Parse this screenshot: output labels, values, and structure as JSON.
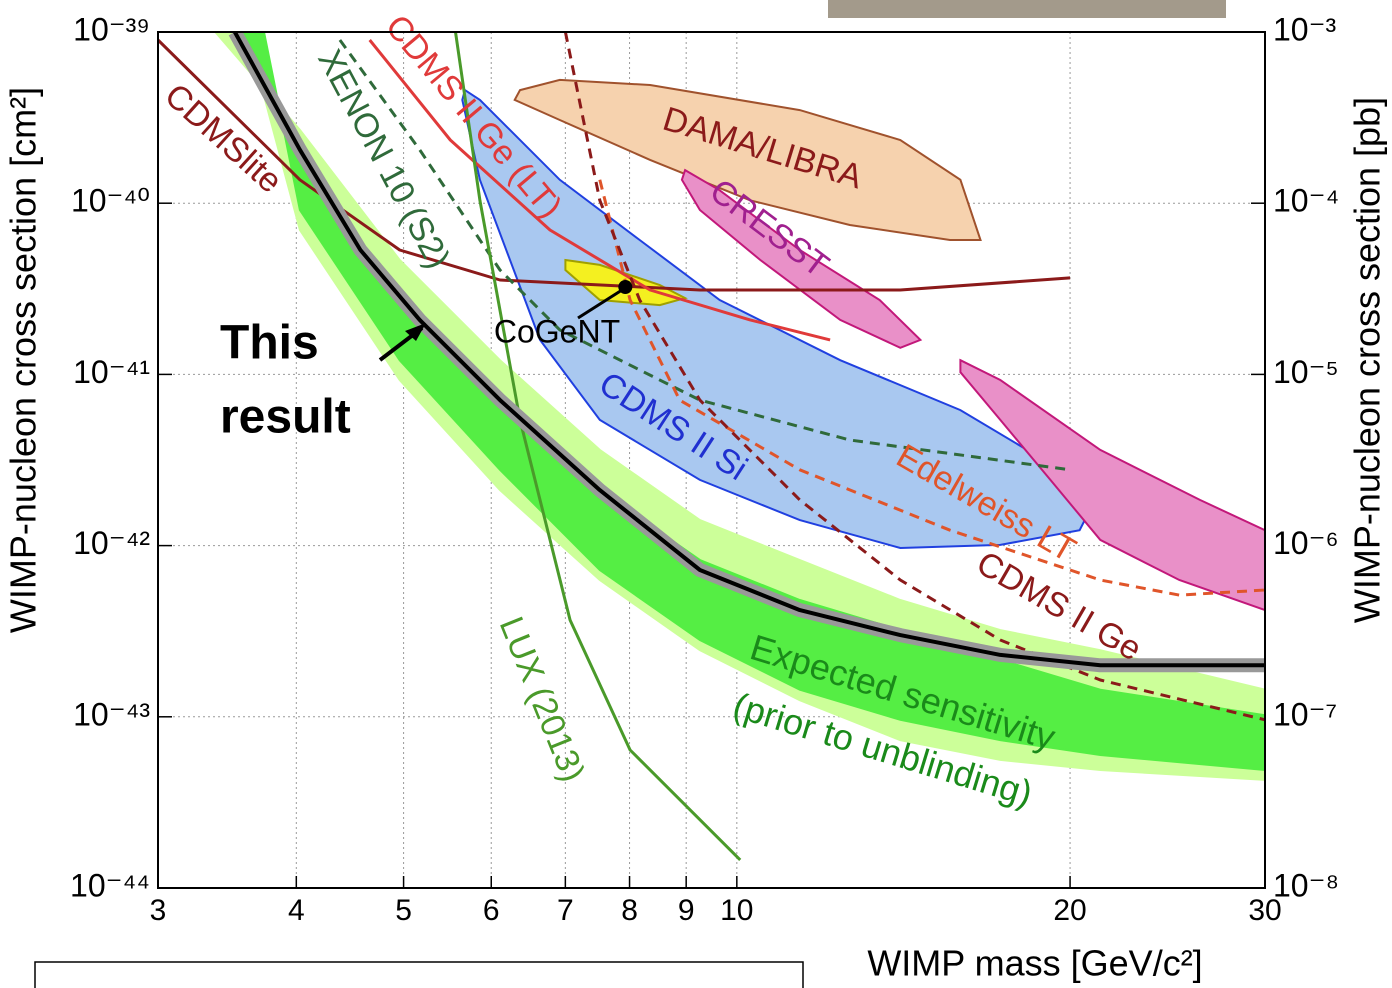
{
  "chart_data": {
    "type": "line",
    "xscale": "log",
    "yscale": "log",
    "xlabel": "WIMP mass [GeV/c²]",
    "ylabel": "WIMP-nucleon cross section [cm²]",
    "y2label": "WIMP-nucleon cross section [pb]",
    "xlim": [
      3,
      30
    ],
    "ylim": [
      1e-44,
      1e-39
    ],
    "y2lim": [
      1e-08,
      0.001
    ],
    "xticks": [
      3,
      4,
      5,
      6,
      7,
      8,
      9,
      10,
      20,
      30
    ],
    "yticks": [
      {
        "value": 1e-44,
        "label": "10⁻⁴⁴"
      },
      {
        "value": 1e-43,
        "label": "10⁻⁴³"
      },
      {
        "value": 1e-42,
        "label": "10⁻⁴²"
      },
      {
        "value": 1e-41,
        "label": "10⁻⁴¹"
      },
      {
        "value": 1e-40,
        "label": "10⁻⁴⁰"
      },
      {
        "value": 1e-39,
        "label": "10⁻³⁹"
      }
    ],
    "y2ticks": [
      {
        "value": 1e-08,
        "label": "10⁻⁸"
      },
      {
        "value": 1e-07,
        "label": "10⁻⁷"
      },
      {
        "value": 1e-06,
        "label": "10⁻⁶"
      },
      {
        "value": 1e-05,
        "label": "10⁻⁵"
      },
      {
        "value": 0.0001,
        "label": "10⁻⁴"
      },
      {
        "value": 0.001,
        "label": "10⁻³"
      }
    ],
    "grid": true,
    "regions": [
      {
        "color": "#ccff99",
        "stroke": "#ccff99",
        "x": [
          3.38,
          4.03,
          4.96,
          6.11,
          7.52,
          9.26,
          11.4,
          14.05,
          17.3,
          21.3,
          30,
          30,
          21.3,
          17.3,
          14.05,
          11.4,
          9.26,
          7.52,
          6.11,
          4.96,
          4.03,
          3.61
        ],
        "values": [
          1e-39,
          2.68e-40,
          4.66e-41,
          1.21e-41,
          3.62e-42,
          1.41e-42,
          8.24e-43,
          4.81e-43,
          3.21e-43,
          2.45e-43,
          1.44e-43,
          4.28e-44,
          4.89e-44,
          5.6e-44,
          7.31e-44,
          1.25e-43,
          2.45e-43,
          6.3e-43,
          2.11e-42,
          9.28e-42,
          6.97e-41,
          1e-39
        ]
      },
      {
        "color": "#55ee44",
        "stroke": "#55ee44",
        "x": [
          3.52,
          4.03,
          4.96,
          6.11,
          7.52,
          9.26,
          11.4,
          14.05,
          17.3,
          21.3,
          30,
          30,
          21.3,
          17.3,
          14.05,
          11.4,
          9.26,
          7.52,
          6.11,
          4.96,
          4.03,
          3.74
        ],
        "values": [
          1e-39,
          1.91e-40,
          2.72e-41,
          7.08e-42,
          2.11e-42,
          8.24e-43,
          4.81e-43,
          3.21e-43,
          2.15e-43,
          1.44e-43,
          1.02e-43,
          4.89e-44,
          5.98e-44,
          7.31e-44,
          9.6e-44,
          1.44e-43,
          2.81e-43,
          7.2e-43,
          2.77e-42,
          1.21e-41,
          9.12e-41,
          1e-39
        ]
      },
      {
        "name": "DAMA/LIBRA",
        "color": "#f6d2ae",
        "stroke": "#a0522d",
        "x": [
          6.37,
          6.92,
          8.35,
          11.4,
          14.05,
          15.92,
          16.6,
          15.58,
          12.65,
          10.28,
          8.35,
          6.92,
          6.3
        ],
        "values": [
          4.58e-40,
          5.25e-40,
          4.9e-40,
          3.5e-40,
          2.34e-40,
          1.37e-40,
          6.1e-41,
          6.1e-41,
          7.46e-41,
          1.04e-40,
          1.79e-40,
          3.06e-40,
          4.01e-40
        ]
      },
      {
        "name": "CDMS II Si",
        "color": "#a9c8f0",
        "stroke": "#2040e0",
        "x": [
          5.68,
          5.86,
          6.92,
          8.17,
          9.65,
          12.4,
          15.92,
          19.6,
          20.84,
          20.4,
          17.3,
          14.05,
          11.4,
          9.26,
          7.52,
          6.64,
          5.86,
          5.65
        ],
        "values": [
          4.58e-40,
          4.01e-40,
          1.37e-40,
          6.1e-41,
          2.72e-41,
          1.21e-41,
          6.19e-42,
          2.77e-42,
          1.61e-42,
          1.23e-42,
          1.01e-42,
          9.68e-43,
          1.41e-42,
          2.42e-42,
          5.42e-42,
          1.59e-41,
          1.37e-40,
          4.01e-40
        ]
      },
      {
        "name": "CRESST",
        "color": "#e990c8",
        "stroke": "#c2187a",
        "x": [
          8.98,
          9.65,
          11.4,
          13.46,
          14.65,
          14.05,
          12.4,
          10.5,
          9.26,
          8.92
        ],
        "values": [
          1.56e-40,
          1.19e-40,
          5.33e-41,
          2.72e-41,
          1.59e-41,
          1.43e-41,
          2.08e-41,
          4.66e-41,
          9.12e-41,
          1.37e-40
        ]
      },
      {
        "color": "#e990c8",
        "stroke": "#c2187a",
        "x": [
          15.92,
          17.3,
          21.3,
          26.2,
          30,
          30,
          25.1,
          21.3,
          19.2,
          17.3,
          15.92
        ],
        "values": [
          1.21e-41,
          9.28e-42,
          3.62e-42,
          1.85e-42,
          1.23e-42,
          4.2e-43,
          6.3e-43,
          1.08e-42,
          2.42e-42,
          5.42e-42,
          1.03e-41
        ]
      },
      {
        "color": "#f4f020",
        "stroke": "#a0a000",
        "x": [
          7.0,
          7.52,
          8.52,
          8.98,
          8.52,
          7.52,
          7.0
        ],
        "values": [
          4.66e-41,
          4.36e-41,
          3.33e-41,
          2.79e-41,
          2.54e-41,
          2.72e-41,
          4.07e-41
        ]
      }
    ],
    "series": [
      {
        "name": "CDMSlite",
        "color": "#8b1a1a",
        "dash": false,
        "x": [
          3,
          4.03,
          4.96,
          6.11,
          9.26,
          14.05,
          20.0
        ],
        "values": [
          8.98e-40,
          1.37e-40,
          5.33e-41,
          3.56e-41,
          3.11e-41,
          3.11e-41,
          3.66e-41
        ]
      },
      {
        "name": "XENON 10 (S2)",
        "color": "#2f6a3a",
        "dash": true,
        "x": [
          4.38,
          5.17,
          6.11,
          6.92,
          9.26,
          12.65,
          20.0
        ],
        "values": [
          8.98e-40,
          2.05e-40,
          4.07e-41,
          1.82e-41,
          7.08e-42,
          4.14e-42,
          2.77e-42
        ]
      },
      {
        "name": "CDMS II Ge (LT)",
        "color": "#e03a3a",
        "dash": false,
        "x": [
          4.66,
          5.51,
          6.78,
          8.35,
          10.28,
          12.14
        ],
        "values": [
          8.98e-40,
          2.34e-40,
          6.97e-41,
          3.11e-41,
          2.08e-41,
          1.59e-41
        ]
      },
      {
        "name": "LUX (2013)",
        "color": "#4a9a2a",
        "dash": false,
        "x": [
          5.57,
          5.86,
          6.37,
          7.07,
          8.01,
          10.07
        ],
        "values": [
          1e-39,
          1.04e-40,
          5.42e-42,
          3.67e-43,
          6.4e-44,
          1.46e-44
        ]
      },
      {
        "name": "Edelweiss LT",
        "color": "#e0552a",
        "dash": true,
        "x": [
          7.52,
          8.01,
          8.88,
          11.4,
          15.58,
          21.3,
          25.1,
          30
        ],
        "values": [
          1.37e-40,
          2.72e-41,
          7.08e-42,
          2.77e-42,
          1.23e-42,
          6.3e-43,
          5.14e-43,
          5.5e-43
        ]
      },
      {
        "name": "CDMS II Ge",
        "color": "#8b1a1a",
        "dash": true,
        "x": [
          7.0,
          7.52,
          8.17,
          9.26,
          11.4,
          14.05,
          17.3,
          21.3,
          30
        ],
        "values": [
          1e-39,
          1.04e-40,
          2.72e-41,
          7.08e-42,
          1.85e-42,
          6.3e-43,
          2.81e-43,
          1.64e-43,
          9.6e-44
        ]
      },
      {
        "color": "#000000",
        "dash": false,
        "x": [
          3.52,
          4.03,
          4.57,
          5.17,
          6.11,
          7.52,
          9.26,
          11.4,
          14.05,
          17.3,
          21.3,
          30
        ],
        "values": [
          1e-39,
          2.05e-40,
          5.33e-41,
          2.08e-41,
          7.08e-42,
          2.11e-42,
          7.2e-43,
          4.2e-43,
          3e-43,
          2.3e-43,
          2e-43,
          2e-43
        ]
      }
    ],
    "point": {
      "name": "CoGeNT",
      "x": 7.93,
      "value": 3.24e-41,
      "color": "#000000"
    },
    "annotations": [
      {
        "text": [
          "This",
          "result"
        ]
      },
      {
        "text": [
          "Expected sensitivity",
          "(prior to unblinding)"
        ]
      }
    ]
  }
}
